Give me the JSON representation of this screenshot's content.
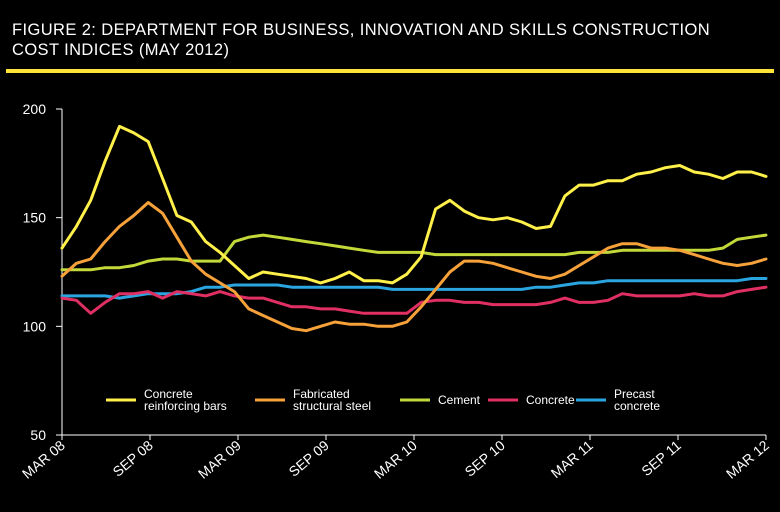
{
  "chart_data": {
    "type": "line",
    "title": "FIGURE 2: DEPARTMENT FOR BUSINESS, INNOVATION AND SKILLS CONSTRUCTION COST INDICES (MAY 2012)",
    "xlabel": "",
    "ylabel": "",
    "ylim": [
      50,
      200
    ],
    "yticks": [
      50,
      100,
      150,
      200
    ],
    "x_tick_labels": [
      "MAR 08",
      "SEP 08",
      "MAR 09",
      "SEP 09",
      "MAR 10",
      "SEP 10",
      "MAR 11",
      "SEP 11",
      "MAR 12"
    ],
    "x_range": [
      0,
      49
    ],
    "grid": false,
    "legend": "bottom-inside",
    "series": [
      {
        "name": "Concrete reinforcing bars",
        "legend_lines": [
          "Concrete",
          "reinforcing bars"
        ],
        "color": "#fff04a",
        "values": [
          136,
          146,
          158,
          176,
          192,
          189,
          185,
          168,
          151,
          148,
          139,
          134,
          128,
          122,
          125,
          124,
          123,
          122,
          120,
          122,
          125,
          121,
          121,
          120,
          124,
          132,
          154,
          158,
          153,
          150,
          149,
          150,
          148,
          145,
          146,
          160,
          165,
          165,
          167,
          167,
          170,
          171,
          173,
          174,
          171,
          170,
          168,
          171,
          171,
          169
        ]
      },
      {
        "name": "Fabricated structural steel",
        "legend_lines": [
          "Fabricated",
          "structural steel"
        ],
        "color": "#f7a13a",
        "values": [
          123,
          129,
          131,
          139,
          146,
          151,
          157,
          152,
          141,
          130,
          124,
          120,
          116,
          108,
          105,
          102,
          99,
          98,
          100,
          102,
          101,
          101,
          100,
          100,
          102,
          109,
          117,
          125,
          130,
          130,
          129,
          127,
          125,
          123,
          122,
          124,
          128,
          132,
          136,
          138,
          138,
          136,
          136,
          135,
          133,
          131,
          129,
          128,
          129,
          131
        ]
      },
      {
        "name": "Cement",
        "legend_lines": [
          "Cement"
        ],
        "color": "#c3d93a",
        "values": [
          126,
          126,
          126,
          127,
          127,
          128,
          130,
          131,
          131,
          130,
          130,
          130,
          139,
          141,
          142,
          141,
          140,
          139,
          138,
          137,
          136,
          135,
          134,
          134,
          134,
          134,
          133,
          133,
          133,
          133,
          133,
          133,
          133,
          133,
          133,
          133,
          134,
          134,
          134,
          135,
          135,
          135,
          135,
          135,
          135,
          135,
          136,
          140,
          141,
          142
        ]
      },
      {
        "name": "Concrete",
        "legend_lines": [
          "Concrete"
        ],
        "color": "#e02f63",
        "values": [
          113,
          112,
          106,
          111,
          115,
          115,
          116,
          113,
          116,
          115,
          114,
          116,
          114,
          113,
          113,
          111,
          109,
          109,
          108,
          108,
          107,
          106,
          106,
          106,
          106,
          111,
          112,
          112,
          111,
          111,
          110,
          110,
          110,
          110,
          111,
          113,
          111,
          111,
          112,
          115,
          114,
          114,
          114,
          114,
          115,
          114,
          114,
          116,
          117,
          118
        ]
      },
      {
        "name": "Precast concrete",
        "legend_lines": [
          "Precast",
          "concrete"
        ],
        "color": "#2aa5e0",
        "values": [
          114,
          114,
          114,
          114,
          113,
          114,
          115,
          115,
          115,
          116,
          118,
          118,
          119,
          119,
          119,
          119,
          118,
          118,
          118,
          118,
          118,
          118,
          118,
          117,
          117,
          117,
          117,
          117,
          117,
          117,
          117,
          117,
          117,
          118,
          118,
          119,
          120,
          120,
          121,
          121,
          121,
          121,
          121,
          121,
          121,
          121,
          121,
          121,
          122,
          122
        ]
      }
    ]
  }
}
